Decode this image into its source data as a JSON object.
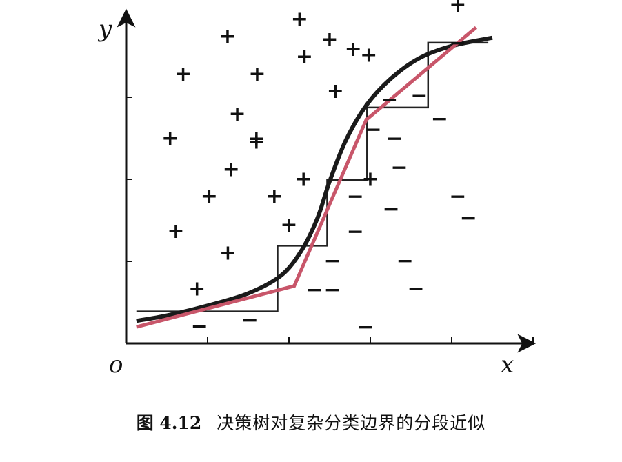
{
  "figure": {
    "x_label": "x",
    "y_label": "y",
    "origin_label": "o",
    "positive_symbol": "+",
    "negative_symbol": "−"
  },
  "caption": {
    "number": "图 4.12",
    "text": "决策树对复杂分类边界的分段近似"
  },
  "chart_data": {
    "type": "scatter",
    "title": "",
    "xlabel": "x",
    "ylabel": "y",
    "xlim": [
      0,
      10
    ],
    "ylim": [
      0,
      10
    ],
    "x_ticks": [
      1,
      2,
      3,
      4,
      5
    ],
    "y_ticks": [
      1,
      2,
      3
    ],
    "grid": false,
    "series": [
      {
        "name": "+",
        "marker": "plus",
        "points": [
          [
            1.4,
            6.57
          ],
          [
            2.49,
            7.49
          ],
          [
            4.26,
            7.91
          ],
          [
            3.22,
            6.57
          ],
          [
            4.38,
            6.99
          ],
          [
            5.4,
            8.67
          ],
          [
            5.0,
            7.41
          ],
          [
            5.14,
            6.15
          ],
          [
            5.58,
            7.18
          ],
          [
            5.96,
            7.03
          ],
          [
            1.08,
            5.0
          ],
          [
            2.73,
            5.6
          ],
          [
            3.2,
            4.92
          ],
          [
            2.58,
            4.24
          ],
          [
            3.2,
            4.99
          ],
          [
            4.36,
            4.01
          ],
          [
            4.0,
            2.89
          ],
          [
            2.04,
            3.59
          ],
          [
            3.64,
            3.59
          ],
          [
            1.22,
            2.74
          ],
          [
            1.74,
            1.34
          ],
          [
            2.5,
            2.21
          ],
          [
            6.0,
            4.01
          ],
          [
            8.15,
            8.25
          ]
        ]
      },
      {
        "name": "−",
        "marker": "minus",
        "points": [
          [
            8.15,
            7.33
          ],
          [
            7.2,
            6.04
          ],
          [
            6.47,
            5.94
          ],
          [
            6.07,
            5.22
          ],
          [
            6.59,
            5.0
          ],
          [
            7.7,
            5.48
          ],
          [
            6.71,
            4.29
          ],
          [
            5.63,
            3.59
          ],
          [
            8.15,
            3.59
          ],
          [
            8.41,
            3.06
          ],
          [
            6.51,
            3.28
          ],
          [
            5.63,
            2.73
          ],
          [
            6.85,
            2.02
          ],
          [
            5.07,
            2.02
          ],
          [
            4.63,
            1.31
          ],
          [
            5.07,
            1.31
          ],
          [
            7.12,
            1.34
          ],
          [
            1.8,
            0.42
          ],
          [
            3.04,
            0.57
          ],
          [
            5.88,
            0.4
          ]
        ]
      }
    ],
    "curves": [
      {
        "name": "",
        "style": "thick-black-smooth",
        "color": "#1a1a1a",
        "points": [
          [
            0.25,
            0.55
          ],
          [
            1.0,
            0.68
          ],
          [
            2.0,
            0.92
          ],
          [
            3.0,
            1.22
          ],
          [
            3.8,
            1.65
          ],
          [
            4.3,
            2.25
          ],
          [
            4.7,
            3.05
          ],
          [
            5.0,
            3.95
          ],
          [
            5.4,
            4.95
          ],
          [
            5.9,
            5.8
          ],
          [
            6.5,
            6.45
          ],
          [
            7.2,
            6.95
          ],
          [
            8.0,
            7.25
          ],
          [
            9.0,
            7.45
          ]
        ]
      },
      {
        "name": "",
        "style": "piecewise-linear",
        "color": "#c8566a",
        "points": [
          [
            0.25,
            0.4
          ],
          [
            4.13,
            1.4
          ],
          [
            5.9,
            5.45
          ],
          [
            8.6,
            7.7
          ]
        ]
      },
      {
        "name": "",
        "style": "decision-tree-staircase",
        "color": "#222222",
        "points": [
          [
            0.25,
            0.78
          ],
          [
            3.72,
            0.78
          ],
          [
            3.72,
            2.38
          ],
          [
            4.94,
            2.38
          ],
          [
            4.94,
            3.98
          ],
          [
            5.92,
            3.98
          ],
          [
            5.92,
            5.75
          ],
          [
            7.42,
            5.75
          ],
          [
            7.42,
            7.33
          ],
          [
            8.9,
            7.33
          ]
        ]
      }
    ]
  }
}
